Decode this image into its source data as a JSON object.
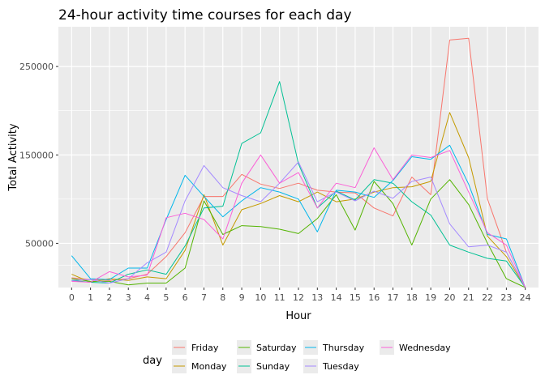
{
  "chart_data": {
    "type": "line",
    "title": "24-hour activity time courses for each day",
    "xlabel": "Hour",
    "ylabel": "Total Activity",
    "x": [
      0,
      1,
      2,
      3,
      4,
      5,
      6,
      7,
      8,
      9,
      10,
      11,
      12,
      13,
      14,
      15,
      16,
      17,
      18,
      19,
      20,
      21,
      22,
      23,
      24
    ],
    "xtick_labels": [
      "0",
      "1",
      "2",
      "3",
      "4",
      "5",
      "6",
      "7",
      "8",
      "9",
      "10",
      "11",
      "12",
      "13",
      "14",
      "15",
      "16",
      "17",
      "18",
      "19",
      "20",
      "21",
      "22",
      "23",
      "24"
    ],
    "yticks": [
      50000,
      150000,
      250000
    ],
    "ytick_labels": [
      "50000",
      "150000",
      "250000"
    ],
    "ylim": [
      0,
      295000
    ],
    "xlim": [
      -0.7,
      24.7
    ],
    "grid": true,
    "panel_background": "#EBEBEB",
    "grid_color": "#FFFFFF",
    "legend": {
      "title": "day",
      "position": "bottom",
      "ncol": 4
    },
    "series": [
      {
        "name": "Friday",
        "color": "#F8766D",
        "values": [
          11000,
          9000,
          8000,
          10000,
          15000,
          35000,
          62000,
          103000,
          103000,
          128000,
          117000,
          112000,
          118000,
          110000,
          108000,
          107000,
          90000,
          81000,
          125000,
          105000,
          280000,
          282000,
          100000,
          40000,
          0
        ]
      },
      {
        "name": "Monday",
        "color": "#C49A00",
        "values": [
          15000,
          6000,
          10000,
          8000,
          12000,
          10000,
          42000,
          105000,
          48000,
          88000,
          95000,
          104000,
          97000,
          108000,
          97000,
          100000,
          108000,
          113000,
          114000,
          120000,
          198000,
          147000,
          58000,
          35000,
          0
        ]
      },
      {
        "name": "Saturday",
        "color": "#53B400",
        "values": [
          10000,
          7000,
          7000,
          3000,
          5000,
          5000,
          22000,
          98000,
          60000,
          70000,
          69000,
          66000,
          61000,
          78000,
          105000,
          65000,
          120000,
          95000,
          48000,
          100000,
          122000,
          94000,
          50000,
          10000,
          0
        ]
      },
      {
        "name": "Sunday",
        "color": "#00C094",
        "values": [
          8000,
          6000,
          5000,
          15000,
          20000,
          15000,
          47000,
          90000,
          92000,
          163000,
          175000,
          233000,
          140000,
          90000,
          109000,
          99000,
          122000,
          118000,
          97000,
          82000,
          48000,
          40000,
          33000,
          30000,
          0
        ]
      },
      {
        "name": "Thursday",
        "color": "#00B6EB",
        "values": [
          36000,
          10000,
          9000,
          22000,
          22000,
          77000,
          127000,
          103000,
          80000,
          98000,
          113000,
          108000,
          100000,
          63000,
          110000,
          108000,
          102000,
          121000,
          148000,
          145000,
          161000,
          117000,
          60000,
          55000,
          0
        ]
      },
      {
        "name": "Tuesday",
        "color": "#A58AFF",
        "values": [
          8000,
          9000,
          5000,
          10000,
          28000,
          40000,
          98000,
          138000,
          113000,
          104000,
          97000,
          118000,
          142000,
          97000,
          108000,
          98000,
          109000,
          101000,
          120000,
          125000,
          72000,
          46000,
          48000,
          40000,
          0
        ]
      },
      {
        "name": "Wednesday",
        "color": "#FB61D7",
        "values": [
          7000,
          6000,
          18000,
          12000,
          14000,
          79000,
          84000,
          77000,
          55000,
          118000,
          150000,
          118000,
          130000,
          90000,
          118000,
          113000,
          158000,
          122000,
          150000,
          147000,
          155000,
          108000,
          62000,
          48000,
          0
        ]
      }
    ]
  }
}
